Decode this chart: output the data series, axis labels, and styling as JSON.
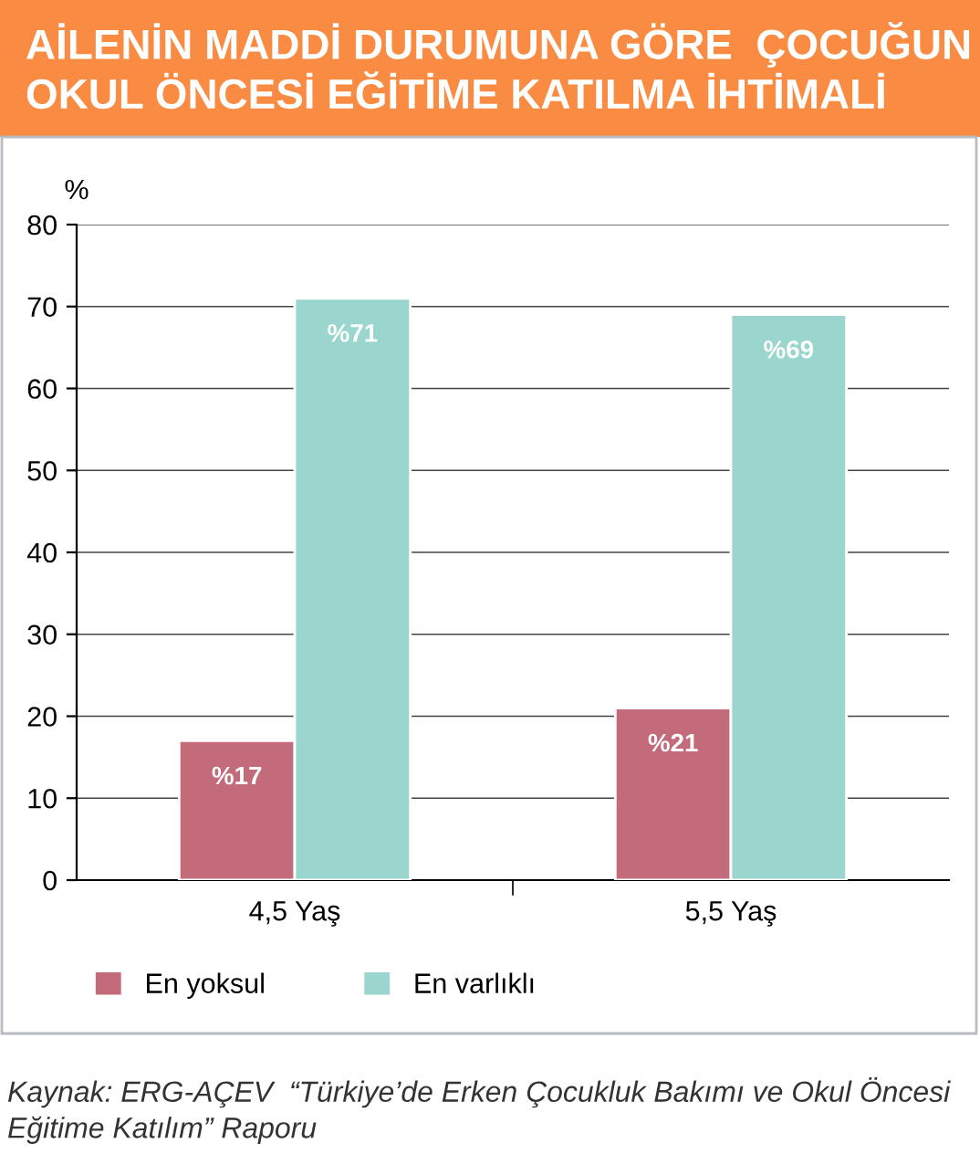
{
  "chart_data": {
    "type": "bar",
    "title": "AİLENİN MADDİ DURUMUNA GÖRE  ÇOCUĞUN OKUL ÖNCESİ EĞİTİME KATILMA İHTİMALİ",
    "ylabel": "%",
    "categories": [
      "4,5 Yaş",
      "5,5 Yaş"
    ],
    "series": [
      {
        "name": "En yoksul",
        "color": "#c46b7b",
        "values": [
          17,
          21
        ],
        "value_labels": [
          "%17",
          "%21"
        ]
      },
      {
        "name": "En varlıklı",
        "color": "#9ad6cd",
        "values": [
          71,
          69
        ],
        "value_labels": [
          "%71",
          "%69"
        ]
      }
    ],
    "ylim": [
      0,
      80
    ],
    "yticks": [
      0,
      10,
      20,
      30,
      40,
      50,
      60,
      70,
      80
    ],
    "grid": "y",
    "legend": "bottom",
    "annotations": [
      "Kaynak: ERG-AÇEV  “Türkiye’de Erken Çocukluk Bakımı ve Okul Öncesi Eğitime Katılım” Raporu"
    ]
  }
}
